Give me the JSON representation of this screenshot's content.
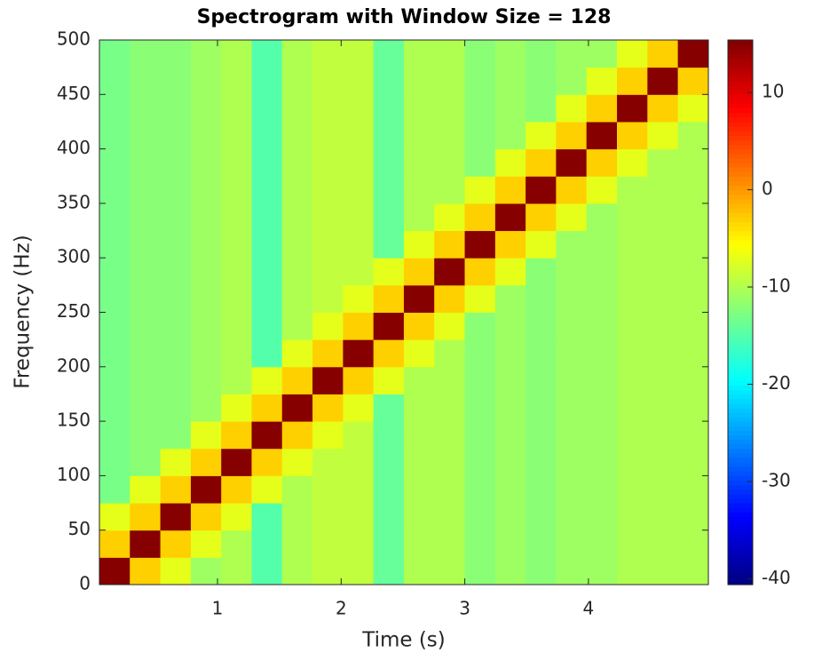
{
  "chart_data": {
    "type": "heatmap",
    "title": "Spectrogram with Window Size = 128",
    "xlabel": "Time (s)",
    "ylabel": "Frequency (Hz)",
    "colormap": "jet",
    "x": [
      0.168,
      0.414,
      0.661,
      0.907,
      1.153,
      1.399,
      1.645,
      1.892,
      2.138,
      2.384,
      2.63,
      2.876,
      3.123,
      3.369,
      3.615,
      3.861,
      4.107,
      4.354,
      4.6,
      4.846
    ],
    "y": [
      12.5,
      37.5,
      62.5,
      87.5,
      112.5,
      137.5,
      162.5,
      187.5,
      212.5,
      237.5,
      262.5,
      287.5,
      312.5,
      337.5,
      362.5,
      387.5,
      412.5,
      437.5,
      462.5,
      487.5
    ],
    "z": [
      [
        15,
        -3,
        -7,
        -11,
        -10,
        -15,
        -10,
        -9,
        -9,
        -14,
        -10,
        -10,
        -12,
        -11,
        -12,
        -11,
        -11,
        -10,
        -10,
        -10
      ],
      [
        -3,
        15,
        -3,
        -7,
        -10,
        -15,
        -10,
        -9,
        -9,
        -14,
        -10,
        -10,
        -12,
        -11,
        -12,
        -11,
        -11,
        -10,
        -10,
        -10
      ],
      [
        -7,
        -3,
        15,
        -3,
        -7,
        -15,
        -10,
        -9,
        -9,
        -14,
        -10,
        -10,
        -12,
        -11,
        -12,
        -11,
        -11,
        -10,
        -10,
        -10
      ],
      [
        -13,
        -7,
        -3,
        15,
        -3,
        -7,
        -10,
        -9,
        -9,
        -14,
        -10,
        -10,
        -12,
        -11,
        -12,
        -11,
        -11,
        -10,
        -10,
        -10
      ],
      [
        -13,
        -12,
        -7,
        -3,
        15,
        -3,
        -7,
        -9,
        -9,
        -14,
        -10,
        -10,
        -12,
        -11,
        -12,
        -11,
        -11,
        -10,
        -10,
        -10
      ],
      [
        -13,
        -12,
        -12,
        -7,
        -3,
        15,
        -3,
        -7,
        -9,
        -14,
        -10,
        -10,
        -12,
        -11,
        -12,
        -11,
        -11,
        -10,
        -10,
        -10
      ],
      [
        -13,
        -12,
        -12,
        -11,
        -7,
        -3,
        15,
        -3,
        -7,
        -14,
        -10,
        -10,
        -12,
        -11,
        -12,
        -11,
        -11,
        -10,
        -10,
        -10
      ],
      [
        -13,
        -12,
        -12,
        -11,
        -10,
        -7,
        -3,
        15,
        -3,
        -7,
        -10,
        -10,
        -12,
        -11,
        -12,
        -11,
        -11,
        -10,
        -10,
        -10
      ],
      [
        -13,
        -12,
        -12,
        -11,
        -10,
        -15,
        -7,
        -3,
        15,
        -3,
        -7,
        -10,
        -12,
        -11,
        -12,
        -11,
        -11,
        -10,
        -10,
        -10
      ],
      [
        -13,
        -12,
        -12,
        -11,
        -10,
        -15,
        -10,
        -7,
        -3,
        15,
        -3,
        -7,
        -12,
        -11,
        -12,
        -11,
        -11,
        -10,
        -10,
        -10
      ],
      [
        -13,
        -12,
        -12,
        -11,
        -10,
        -15,
        -10,
        -9,
        -7,
        -3,
        15,
        -3,
        -7,
        -11,
        -12,
        -11,
        -11,
        -10,
        -10,
        -10
      ],
      [
        -13,
        -12,
        -12,
        -11,
        -10,
        -15,
        -10,
        -9,
        -9,
        -7,
        -3,
        15,
        -3,
        -7,
        -12,
        -11,
        -11,
        -10,
        -10,
        -10
      ],
      [
        -13,
        -12,
        -12,
        -11,
        -10,
        -15,
        -10,
        -9,
        -9,
        -14,
        -7,
        -3,
        15,
        -3,
        -7,
        -11,
        -11,
        -10,
        -10,
        -10
      ],
      [
        -13,
        -12,
        -12,
        -11,
        -10,
        -15,
        -10,
        -9,
        -9,
        -14,
        -10,
        -7,
        -3,
        15,
        -3,
        -7,
        -11,
        -10,
        -10,
        -10
      ],
      [
        -13,
        -12,
        -12,
        -11,
        -10,
        -15,
        -10,
        -9,
        -9,
        -14,
        -10,
        -10,
        -7,
        -3,
        15,
        -3,
        -7,
        -10,
        -10,
        -10
      ],
      [
        -13,
        -12,
        -12,
        -11,
        -10,
        -15,
        -10,
        -9,
        -9,
        -14,
        -10,
        -10,
        -12,
        -7,
        -3,
        15,
        -3,
        -7,
        -10,
        -10
      ],
      [
        -13,
        -12,
        -12,
        -11,
        -10,
        -15,
        -10,
        -9,
        -9,
        -14,
        -10,
        -10,
        -12,
        -11,
        -7,
        -3,
        15,
        -3,
        -7,
        -10
      ],
      [
        -13,
        -12,
        -12,
        -11,
        -10,
        -15,
        -10,
        -9,
        -9,
        -14,
        -10,
        -10,
        -12,
        -11,
        -12,
        -7,
        -3,
        15,
        -3,
        -7
      ],
      [
        -13,
        -12,
        -12,
        -11,
        -10,
        -15,
        -10,
        -9,
        -9,
        -14,
        -10,
        -10,
        -12,
        -11,
        -12,
        -11,
        -7,
        -3,
        15,
        -3
      ],
      [
        -13,
        -12,
        -12,
        -11,
        -10,
        -15,
        -10,
        -9,
        -9,
        -14,
        -10,
        -10,
        -12,
        -11,
        -12,
        -11,
        -11,
        -7,
        -3,
        15
      ]
    ],
    "xlim": [
      0.045,
      4.97
    ],
    "xticks": [
      1,
      2,
      3,
      4
    ],
    "ylim": [
      0,
      500
    ],
    "yticks": [
      0,
      50,
      100,
      150,
      200,
      250,
      300,
      350,
      400,
      450,
      500
    ],
    "clim": [
      -40.6,
      15.4
    ],
    "cticks": [
      -40,
      -30,
      -20,
      -10,
      0,
      10
    ]
  }
}
